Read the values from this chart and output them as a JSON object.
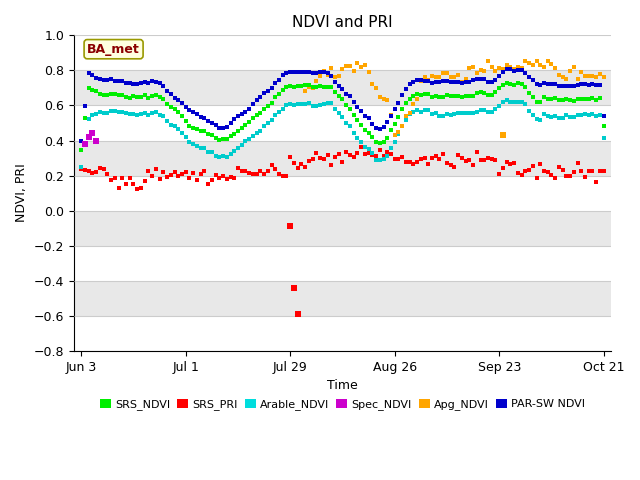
{
  "title": "NDVI and PRI",
  "ylabel": "NDVI, PRI",
  "xlabel": "Time",
  "ylim": [
    -0.8,
    1.0
  ],
  "annotation_text": "BA_met",
  "annotation_color": "#8B0000",
  "annotation_bg": "#FFFFE0",
  "x_tick_labels": [
    "Jun 3",
    "Jul 1",
    "Jul 29",
    "Aug 26",
    "Sep 23",
    "Oct 21"
  ],
  "x_tick_positions": [
    0,
    28,
    56,
    84,
    112,
    140
  ],
  "legend_labels": [
    "SRS_NDVI",
    "SRS_PRI",
    "Arable_NDVI",
    "Spec_NDVI",
    "Apg_NDVI",
    "PAR-SW NDVI"
  ],
  "legend_colors": [
    "#00EE00",
    "#FF0000",
    "#00DDDD",
    "#CC00CC",
    "#FFA500",
    "#0000CC"
  ],
  "colors": {
    "srs_ndvi": "#00EE00",
    "srs_pri": "#FF0000",
    "arable_ndvi": "#00CCCC",
    "spec_ndvi": "#CC00CC",
    "apg_ndvi": "#FFA500",
    "par_sw_ndvi": "#0000CC"
  },
  "bg_gray": "#E8E8E8",
  "bg_white_bands": [
    [
      -0.8,
      -0.6
    ],
    [
      -0.4,
      -0.2
    ],
    [
      0.0,
      0.2
    ],
    [
      0.4,
      0.6
    ],
    [
      0.8,
      1.0
    ]
  ]
}
